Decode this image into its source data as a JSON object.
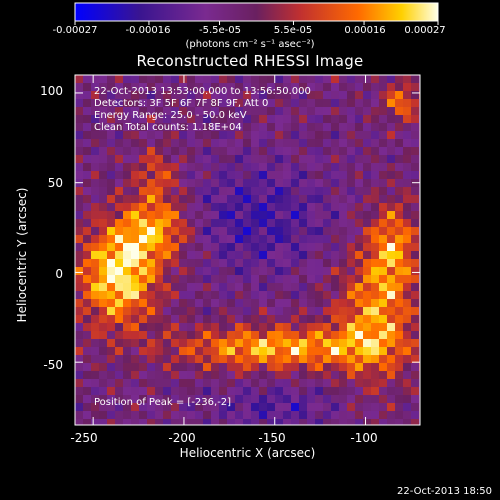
{
  "chart_data": {
    "type": "heatmap",
    "title": "Reconstructed RHESSI Image",
    "xlabel": "Heliocentric X (arcsec)",
    "ylabel": "Heliocentric Y (arcsec)",
    "xlim": [
      -260,
      -70
    ],
    "ylim": [
      -85,
      110
    ],
    "x_ticks": [
      "-250",
      "-200",
      "-150",
      "-100"
    ],
    "x_tick_values": [
      -250,
      -200,
      -150,
      -100
    ],
    "y_ticks": [
      "100",
      "50",
      "0",
      "-50"
    ],
    "y_tick_values": [
      100,
      50,
      0,
      -50
    ],
    "colorbar": {
      "range": [
        -0.00027,
        0.00027
      ],
      "tick_labels": [
        "-0.00027",
        "-0.00016",
        "-5.5e-05",
        "5.5e-05",
        "0.00016",
        "0.00027"
      ],
      "tick_values": [
        -0.00027,
        -0.00016,
        -5.5e-05,
        5.5e-05,
        0.00016,
        0.00027
      ],
      "units": "(photons cm⁻² s⁻¹ asec⁻²)",
      "colors": [
        "#0000ff",
        "#3a1590",
        "#7a2a90",
        "#c03030",
        "#ff6a00",
        "#ffd000",
        "#ffffe8"
      ]
    },
    "annotations": [
      "22-Oct-2013 13:53:00.000 to 13:56:50.000",
      "Detectors: 3F 5F 6F 7F 8F 9F, Att 0",
      "Energy Range: 25.0 - 50.0 keV",
      "Clean     Total counts: 1.18E+04"
    ],
    "peak_text": "Position of Peak = [-236,-2]",
    "peak_position": [
      -236,
      -2
    ],
    "grid": false
  },
  "timestamp": "22-Oct-2013 18:50"
}
